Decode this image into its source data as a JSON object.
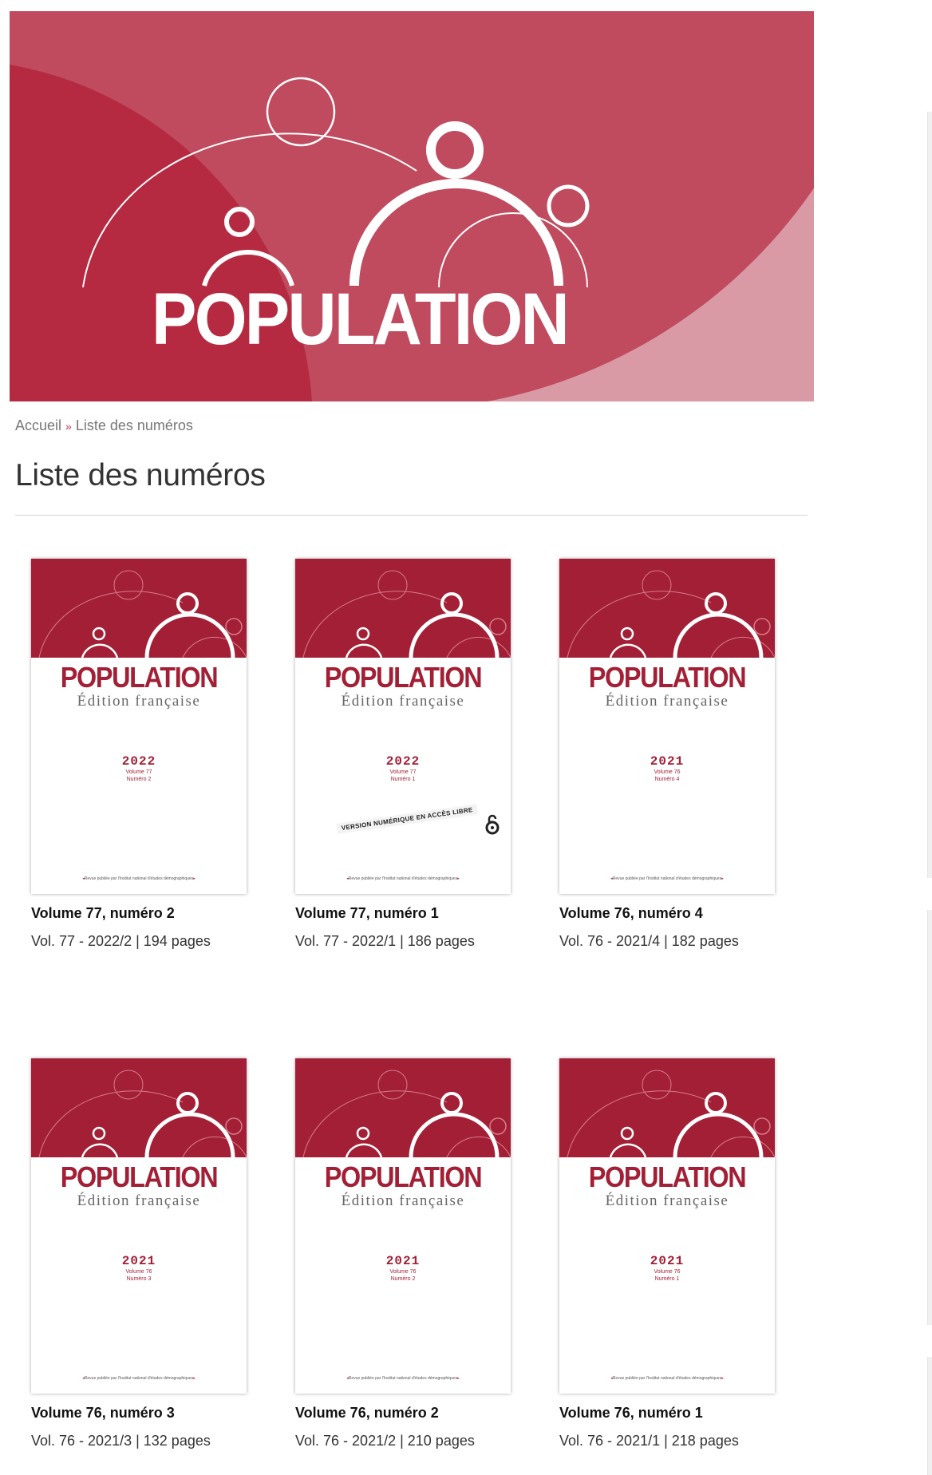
{
  "header": {
    "title": "POPULATION"
  },
  "breadcrumb": {
    "home": "Accueil",
    "separator": "»",
    "current": "Liste des numéros"
  },
  "page_title": "Liste des numéros",
  "cover_common": {
    "title": "POPULATION",
    "edition": "Édition française",
    "footer_text": "Revue publiée par l'Institut national d'études démographiques",
    "open_access_label": "VERSION NUMÉRIQUE EN ACCÈS LIBRE"
  },
  "issues": [
    {
      "title": "Volume 77, numéro 2",
      "meta": "Vol. 77 - 2022/2 | 194 pages",
      "cover_year": "2022",
      "cover_volume": "Volume 77",
      "cover_number": "Numéro 2",
      "open_access": false
    },
    {
      "title": "Volume 77, numéro 1",
      "meta": "Vol. 77 - 2022/1 | 186 pages",
      "cover_year": "2022",
      "cover_volume": "Volume 77",
      "cover_number": "Numéro 1",
      "open_access": true
    },
    {
      "title": "Volume 76, numéro 4",
      "meta": "Vol. 76 - 2021/4 | 182 pages",
      "cover_year": "2021",
      "cover_volume": "Volume 76",
      "cover_number": "Numéro 4",
      "open_access": false
    },
    {
      "title": "Volume 76, numéro 3",
      "meta": "Vol. 76 - 2021/3 | 132 pages",
      "cover_year": "2021",
      "cover_volume": "Volume 76",
      "cover_number": "Numéro 3",
      "open_access": false
    },
    {
      "title": "Volume 76, numéro 2",
      "meta": "Vol. 76 - 2021/2 | 210 pages",
      "cover_year": "2021",
      "cover_volume": "Volume 76",
      "cover_number": "Numéro 2",
      "open_access": false
    },
    {
      "title": "Volume 76, numéro 1",
      "meta": "Vol. 76 - 2021/1 | 218 pages",
      "cover_year": "2021",
      "cover_volume": "Volume 76",
      "cover_number": "Numéro 1",
      "open_access": false
    }
  ],
  "colors": {
    "brand": "#a31f35",
    "banner_main": "#c04a5e",
    "banner_light": "#d99aa6",
    "banner_dark": "#b52a40"
  }
}
